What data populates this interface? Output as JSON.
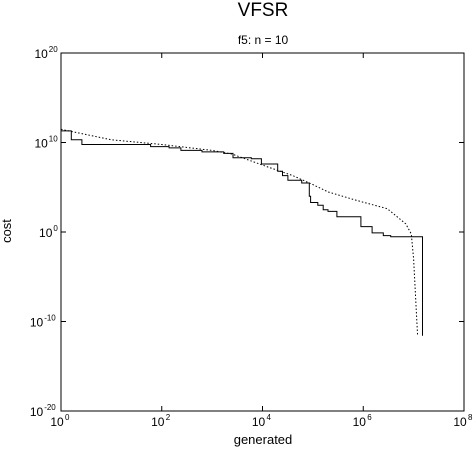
{
  "chart_data": {
    "type": "line",
    "title": "VFSR",
    "subtitle": "f5: n = 10",
    "xlabel": "generated",
    "ylabel": "cost",
    "xscale": "log",
    "yscale": "log",
    "xlim": [
      1,
      100000000
    ],
    "ylim": [
      1e-20,
      1e+20
    ],
    "grid": false,
    "x_ticks": [
      {
        "base": "10",
        "exp": "0"
      },
      {
        "base": "10",
        "exp": "2"
      },
      {
        "base": "10",
        "exp": "4"
      },
      {
        "base": "10",
        "exp": "6"
      },
      {
        "base": "10",
        "exp": "8"
      }
    ],
    "y_ticks": [
      {
        "base": "10",
        "exp": "20"
      },
      {
        "base": "10",
        "exp": "10"
      },
      {
        "base": "10",
        "exp": "0"
      },
      {
        "base": "10",
        "exp": "-10"
      },
      {
        "base": "10",
        "exp": "-20"
      }
    ],
    "series": [
      {
        "style": "solid",
        "color": "#000000",
        "points": [
          [
            1,
            200000000000.0
          ],
          [
            1.6,
            20000000000.0
          ],
          [
            2.6,
            6000000000.0
          ],
          [
            20,
            6000000000.0
          ],
          [
            60,
            3500000000.0
          ],
          [
            140,
            2500000000.0
          ],
          [
            240,
            1300000000.0
          ],
          [
            630,
            900000000.0
          ],
          [
            1700,
            600000000.0
          ],
          [
            2600,
            200000000.0
          ],
          [
            6000,
            150000000.0
          ],
          [
            9500,
            40000000.0
          ],
          [
            20000,
            6000000.0
          ],
          [
            25000,
            2000000.0
          ],
          [
            32000,
            600000.0
          ],
          [
            60000,
            300000.0
          ],
          [
            85000,
            10000.0
          ],
          [
            90000,
            2000.0
          ],
          [
            125000,
            1000.0
          ],
          [
            160000,
            300.0
          ],
          [
            200000,
            200.0
          ],
          [
            300000,
            50.0
          ],
          [
            900000,
            4.0
          ],
          [
            1500000,
            0.8
          ],
          [
            2500000,
            0.4
          ],
          [
            3500000,
            0.3
          ],
          [
            15000000,
            0.1
          ],
          [
            15000000,
            2.5e-12
          ]
        ]
      },
      {
        "style": "dotted",
        "color": "#000000",
        "points": [
          [
            1,
            300000000000.0
          ],
          [
            10,
            20000000000.0
          ],
          [
            100,
            6000000000.0
          ],
          [
            1000,
            1300000000.0
          ],
          [
            2500,
            500000000.0
          ],
          [
            10000,
            30000000.0
          ],
          [
            40000,
            2000000.0
          ],
          [
            100000,
            200000.0
          ],
          [
            200000,
            30000.0
          ],
          [
            800000,
            3000.0
          ],
          [
            3000000,
            400.0
          ],
          [
            7000000,
            8.0
          ],
          [
            9000000,
            0.6
          ],
          [
            10000000,
            0.001
          ],
          [
            12000000,
            2.5e-12
          ]
        ]
      }
    ]
  }
}
